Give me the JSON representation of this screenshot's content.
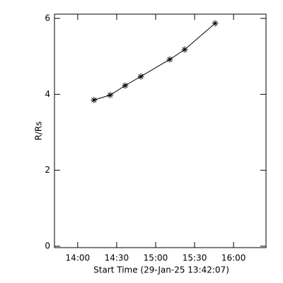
{
  "chart_data": {
    "type": "scatter",
    "x_label": "Start Time (29-Jan-25 13:42:07)",
    "y_label": "R/Rs",
    "x": [
      852.5,
      865,
      876.5,
      888.6,
      910.9,
      922.4,
      945.8
    ],
    "series": [
      {
        "values": [
          3.85,
          3.98,
          4.23,
          4.47,
          4.92,
          5.18,
          5.87
        ],
        "color": "#000000"
      }
    ],
    "xlim": [
      822.1,
      985
    ],
    "xticks": [
      {
        "value": 840,
        "label": "14:00"
      },
      {
        "value": 870,
        "label": "14:30"
      },
      {
        "value": 900,
        "label": "15:00"
      },
      {
        "value": 930,
        "label": "15:30"
      },
      {
        "value": 960,
        "label": "16:00"
      }
    ],
    "ylim": [
      0,
      6
    ],
    "yticks": [
      0,
      2,
      4,
      6
    ],
    "fit_line": true
  }
}
